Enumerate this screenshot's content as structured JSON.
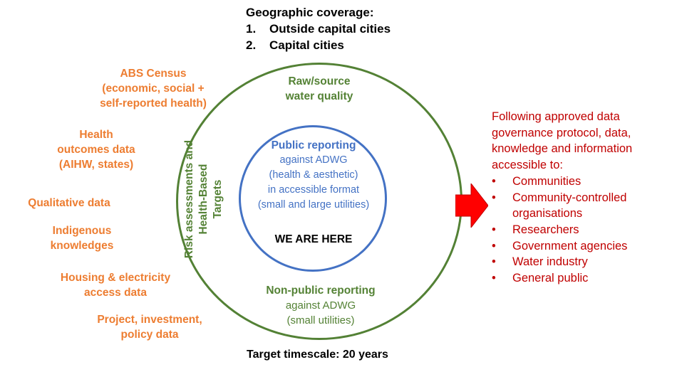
{
  "geographic": {
    "title": "Geographic coverage:",
    "items": [
      {
        "num": "1.",
        "text": "Outside capital cities"
      },
      {
        "num": "2.",
        "text": "Capital cities"
      }
    ]
  },
  "data_sources": [
    {
      "lines": [
        "ABS Census",
        "(economic, social +",
        "self-reported health)"
      ]
    },
    {
      "lines": [
        "Health",
        "outcomes data",
        "(AIHW, states)"
      ]
    },
    {
      "lines": [
        "Qualitative data"
      ]
    },
    {
      "lines": [
        "Indigenous",
        "knowledges"
      ]
    },
    {
      "lines": [
        "Housing & electricity",
        "access data"
      ]
    },
    {
      "lines": [
        "Project, investment,",
        "policy data"
      ]
    }
  ],
  "outer_ring": {
    "top_lines": [
      "Raw/source",
      "water quality"
    ],
    "side_lines": [
      "Risk assessments and",
      "Health-Based",
      "Targets"
    ],
    "bottom_title": "Non-public reporting",
    "bottom_lines": [
      "against ADWG",
      "(small utilities)"
    ]
  },
  "inner_circle": {
    "title": "Public reporting",
    "lines": [
      "against ADWG",
      "(health & aesthetic)",
      "in accessible format",
      "(small and large utilities)"
    ],
    "marker": "WE ARE  HERE"
  },
  "governance": {
    "intro_lines": [
      "Following approved data",
      "governance protocol, data,",
      "knowledge and information",
      "accessible to:"
    ],
    "bullet": "•",
    "audiences": [
      "Communities",
      "Community-controlled organisations",
      "Researchers",
      "Government agencies",
      "Water industry",
      "General public"
    ]
  },
  "timescale": "Target timescale:  20 years",
  "colors": {
    "data_sources": "#ED7D31",
    "outer_ring": "#538135",
    "inner_circle": "#4472C4",
    "governance": "#C00000",
    "arrow": "#FF0000"
  }
}
